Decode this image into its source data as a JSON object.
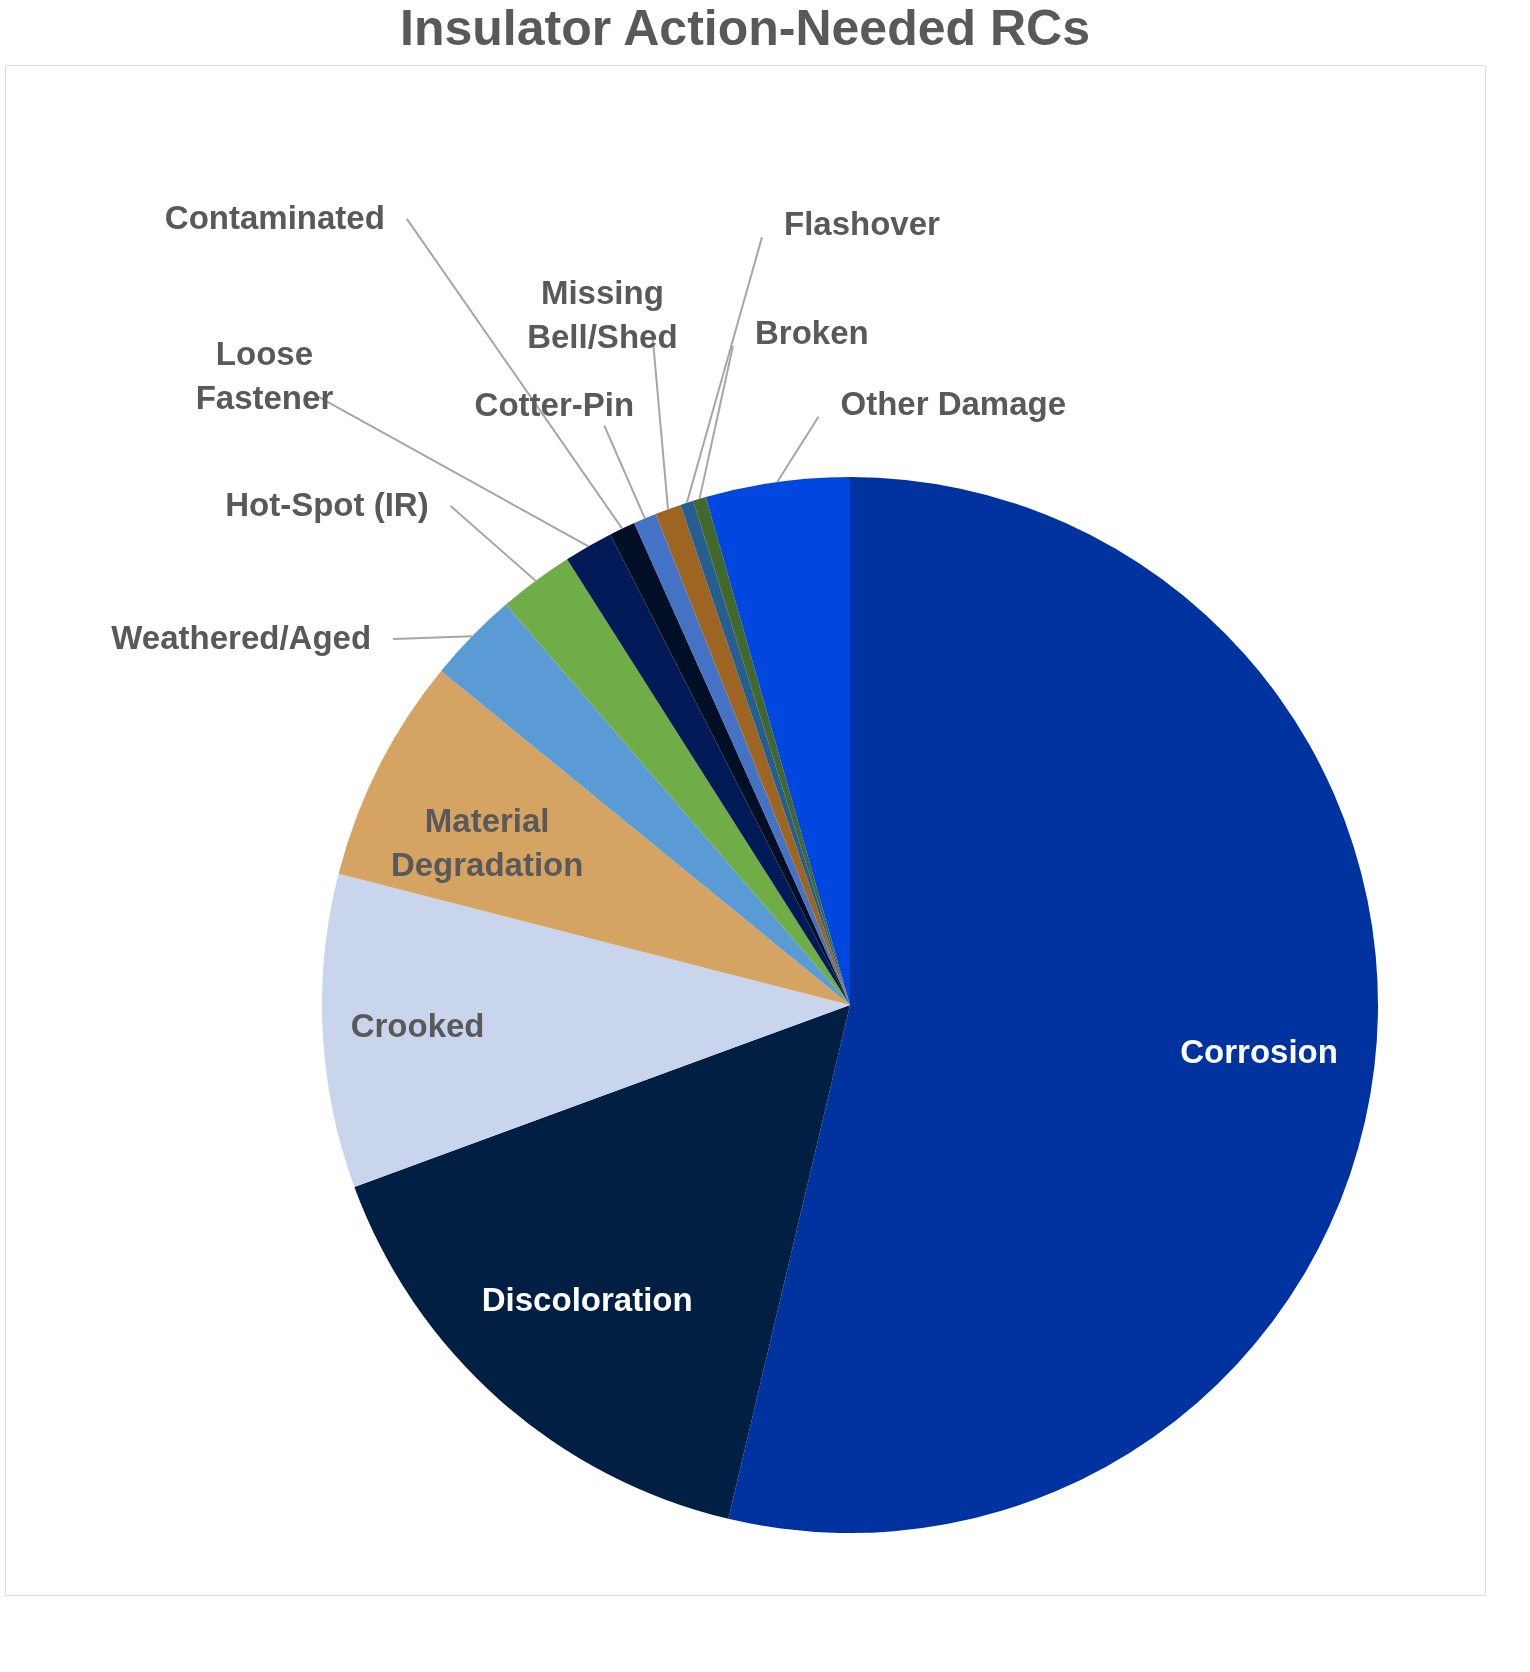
{
  "chart_data": {
    "type": "pie",
    "title": "Insulator Action-Needed RCs",
    "categories": [
      "Corrosion",
      "Discoloration",
      "Crooked",
      "Material Degradation",
      "Weathered/Aged",
      "Hot-Spot (IR)",
      "Loose Fastener",
      "Contaminated",
      "Cotter-Pin",
      "Missing Bell/Shed",
      "Flashover",
      "Broken",
      "Other Damage"
    ],
    "values": [
      53.7,
      15.7,
      9.6,
      6.9,
      2.8,
      2.3,
      1.5,
      0.8,
      0.7,
      0.8,
      0.4,
      0.4,
      4.4
    ],
    "colors": [
      "#0033a0",
      "#001f42",
      "#c9d5ec",
      "#d5a462",
      "#5b9bd5",
      "#70ad47",
      "#001a57",
      "#000f26",
      "#4472c4",
      "#9e6422",
      "#255e91",
      "#43682b",
      "#0047e0"
    ]
  }
}
